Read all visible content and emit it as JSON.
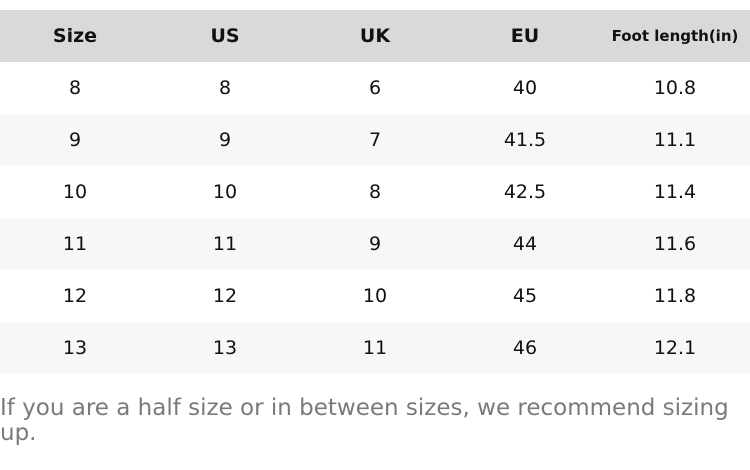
{
  "table": {
    "headers": [
      "Size",
      "US",
      "UK",
      "EU",
      "Foot length(in)"
    ],
    "rows": [
      [
        "8",
        "8",
        "6",
        "40",
        "10.8"
      ],
      [
        "9",
        "9",
        "7",
        "41.5",
        "11.1"
      ],
      [
        "10",
        "10",
        "8",
        "42.5",
        "11.4"
      ],
      [
        "11",
        "11",
        "9",
        "44",
        "11.6"
      ],
      [
        "12",
        "12",
        "10",
        "45",
        "11.8"
      ],
      [
        "13",
        "13",
        "11",
        "46",
        "12.1"
      ]
    ]
  },
  "note": "If you are a half size or in between sizes, we recommend sizing up.",
  "colors": {
    "header_bg": "#d9d9d9",
    "alt_row_bg": "#f7f7f7",
    "note_text": "#7a7a7a"
  }
}
